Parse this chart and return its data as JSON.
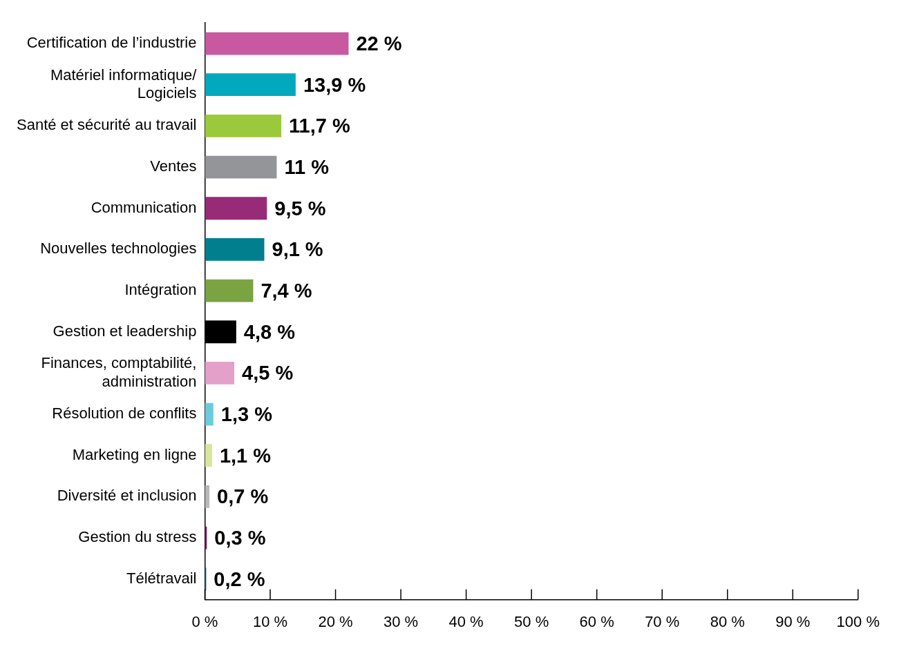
{
  "chart_data": {
    "type": "bar",
    "orientation": "horizontal",
    "categories": [
      "Certification de l’industrie",
      "Matériel informatique/\nLogiciels",
      "Santé et sécurité au travail",
      "Ventes",
      "Communication",
      "Nouvelles technologies",
      "Intégration",
      "Gestion et leadership",
      "Finances, comptabilité,\nadministration",
      "Résolution de conflits",
      "Marketing en ligne",
      "Diversité et inclusion",
      "Gestion du stress",
      "Télétravail"
    ],
    "values": [
      22,
      13.9,
      11.7,
      11,
      9.5,
      9.1,
      7.4,
      4.8,
      4.5,
      1.3,
      1.1,
      0.7,
      0.3,
      0.2
    ],
    "value_labels": [
      "22 %",
      "13,9 %",
      "11,7 %",
      "11 %",
      "9,5 %",
      "9,1 %",
      "7,4 %",
      "4,8 %",
      "4,5 %",
      "1,3 %",
      "1,1 %",
      "0,7 %",
      "0,3 %",
      "0,2 %"
    ],
    "colors": [
      "#c8589f",
      "#00a9bd",
      "#9bc93c",
      "#939598",
      "#982b78",
      "#007f8e",
      "#7aa342",
      "#000000",
      "#e3a0c8",
      "#6ccbd9",
      "#d7e69a",
      "#b8b9bb",
      "#7a1f5c",
      "#00676f"
    ],
    "xlim": [
      0,
      100
    ],
    "xticks": [
      {
        "value": 0,
        "label": "0 %"
      },
      {
        "value": 10,
        "label": "10 %"
      },
      {
        "value": 20,
        "label": "20 %"
      },
      {
        "value": 30,
        "label": "30 %"
      },
      {
        "value": 40,
        "label": "40 %"
      },
      {
        "value": 50,
        "label": "50 %"
      },
      {
        "value": 60,
        "label": "60 %"
      },
      {
        "value": 70,
        "label": "70 %"
      },
      {
        "value": 80,
        "label": "80 %"
      },
      {
        "value": 90,
        "label": "90 %"
      },
      {
        "value": 100,
        "label": "100 %"
      }
    ],
    "grid": false,
    "legend": false
  }
}
